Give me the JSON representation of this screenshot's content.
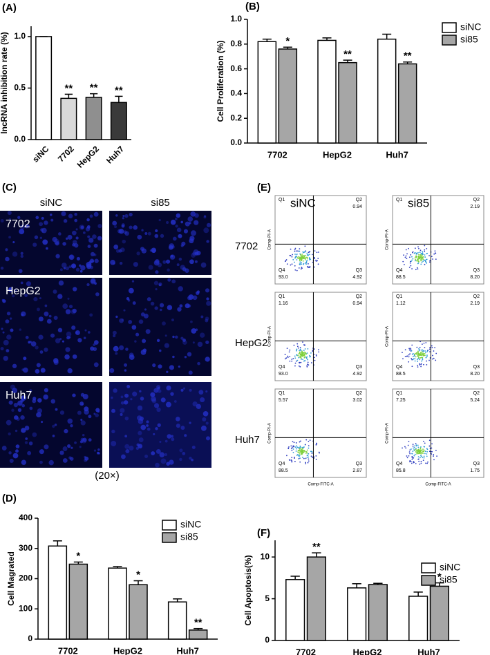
{
  "chart_data": [
    {
      "type": "bar",
      "panel": "(A)",
      "ylabel": "lncRNA inhibition rate (%)",
      "categories": [
        "siNC",
        "7702",
        "HepG2",
        "Huh7"
      ],
      "values": [
        1.0,
        0.4,
        0.41,
        0.36
      ],
      "errors": [
        0,
        0.04,
        0.035,
        0.06
      ],
      "colors": [
        "#ffffff",
        "#d9d9d9",
        "#8f8f8f",
        "#3a3a3a"
      ],
      "significance": [
        null,
        "**",
        "**",
        "**"
      ],
      "ylim": [
        0,
        1.1
      ],
      "yticks": [
        {
          "value": 0,
          "label": "0.0"
        },
        {
          "value": 0.5,
          "label": "0.5"
        },
        {
          "value": 1,
          "label": "1.0"
        }
      ]
    },
    {
      "type": "grouped-bar",
      "panel": "(B)",
      "ylabel": "Cell Proliferation (%)",
      "categories": [
        "7702",
        "HepG2",
        "Huh7"
      ],
      "series": [
        {
          "name": "siNC",
          "color": "#ffffff",
          "values": [
            0.82,
            0.83,
            0.84
          ],
          "errors": [
            0.02,
            0.02,
            0.04
          ]
        },
        {
          "name": "si85",
          "color": "#a6a6a6",
          "values": [
            0.76,
            0.65,
            0.64
          ],
          "errors": [
            0.015,
            0.02,
            0.015
          ],
          "significance": [
            "*",
            "**",
            "**"
          ]
        }
      ],
      "ylim": [
        0,
        1.0
      ],
      "yticks": [
        {
          "value": 0,
          "label": "0.0"
        },
        0.2,
        0.4,
        0.6,
        0.8,
        {
          "value": 1,
          "label": "1.0"
        }
      ]
    },
    {
      "type": "grouped-bar",
      "panel": "(D)",
      "ylabel": "Cell Magrated",
      "categories": [
        "7702",
        "HepG2",
        "Huh7"
      ],
      "series": [
        {
          "name": "siNC",
          "color": "#ffffff",
          "values": [
            308,
            235,
            123
          ],
          "errors": [
            17,
            5,
            10
          ]
        },
        {
          "name": "si85",
          "color": "#a6a6a6",
          "values": [
            248,
            180,
            30
          ],
          "errors": [
            7,
            13,
            5
          ],
          "significance": [
            "*",
            "*",
            "**"
          ]
        }
      ],
      "ylim": [
        0,
        400
      ],
      "yticks": [
        0,
        100,
        200,
        300,
        400
      ]
    },
    {
      "type": "grouped-bar",
      "panel": "(F)",
      "ylabel": "Cell Apoptosis(%)",
      "categories": [
        "7702",
        "HepG2",
        "Huh7"
      ],
      "series": [
        {
          "name": "siNC",
          "color": "#ffffff",
          "values": [
            7.3,
            6.3,
            5.3
          ],
          "errors": [
            0.4,
            0.5,
            0.5
          ]
        },
        {
          "name": "si85",
          "color": "#a6a6a6",
          "values": [
            10.0,
            6.7,
            6.5
          ],
          "errors": [
            0.5,
            0.15,
            0.4
          ],
          "significance": [
            "**",
            null,
            "*"
          ]
        }
      ],
      "ylim": [
        0,
        12
      ],
      "yticks": [
        0,
        5,
        10
      ]
    }
  ],
  "panel_c": {
    "label": "(C)",
    "columns": [
      "siNC",
      "si85"
    ],
    "rows": [
      "7702",
      "HepG2",
      "Huh7"
    ],
    "caption": "(20×)"
  },
  "panel_e": {
    "label": "(E)",
    "columns": [
      "siNC",
      "si85"
    ],
    "rows": [
      "7702",
      "HepG2",
      "Huh7"
    ],
    "quadrants": [
      "Q1",
      "Q2",
      "Q3",
      "Q4"
    ],
    "x_axis": "Comp-FITC-A",
    "y_axis": "Comp-PI-A",
    "values": [
      [
        [
          null,
          "0.94",
          "4.92",
          "93.0"
        ],
        [
          null,
          "2.19",
          "8.20",
          "88.5"
        ]
      ],
      [
        [
          "1.16",
          "0.94",
          "4.92",
          "93.0"
        ],
        [
          "1.12",
          "2.19",
          "8.20",
          "88.5"
        ]
      ],
      [
        [
          "5.57",
          "3.02",
          "2.87",
          "88.5"
        ],
        [
          "7.25",
          "5.24",
          "1.75",
          "85.8"
        ]
      ]
    ]
  }
}
